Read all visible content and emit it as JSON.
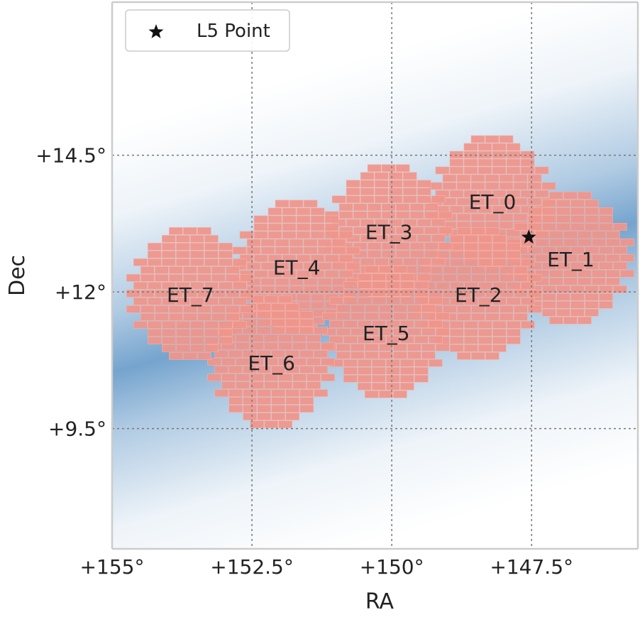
{
  "chart_data": {
    "type": "scatter",
    "title": "",
    "xlabel": "RA",
    "ylabel": "Dec",
    "xlim": [
      155.0,
      145.6
    ],
    "ylim": [
      7.3,
      17.3
    ],
    "x_ticks": [
      155.0,
      152.5,
      150.0,
      147.5
    ],
    "x_tick_labels": [
      "+155°",
      "+152.5°",
      "+150°",
      "+147.5°"
    ],
    "y_ticks": [
      14.5,
      12.0,
      9.5
    ],
    "y_tick_labels": [
      "+14.5°",
      "+12°",
      "+9.5°"
    ],
    "grid": true,
    "grid_style": "dotted",
    "legend": {
      "placement": "top-left",
      "entries": [
        {
          "marker": "star",
          "label": "L5 Point"
        }
      ]
    },
    "background_density_band": {
      "color": "#6e9fcb",
      "description_free": true
    },
    "l5_point": {
      "ra": 147.55,
      "dec": 13.0
    },
    "fields": [
      {
        "label": "ET_0",
        "ra": 148.2,
        "dec": 13.65,
        "radius": 1.18
      },
      {
        "label": "ET_1",
        "ra": 146.8,
        "dec": 12.6,
        "radius": 1.2
      },
      {
        "label": "ET_2",
        "ra": 148.45,
        "dec": 11.95,
        "radius": 1.2
      },
      {
        "label": "ET_3",
        "ra": 150.05,
        "dec": 13.1,
        "radius": 1.2
      },
      {
        "label": "ET_4",
        "ra": 151.7,
        "dec": 12.45,
        "radius": 1.2
      },
      {
        "label": "ET_5",
        "ra": 150.1,
        "dec": 11.25,
        "radius": 1.2
      },
      {
        "label": "ET_6",
        "ra": 152.15,
        "dec": 10.7,
        "radius": 1.2
      },
      {
        "label": "ET_7",
        "ra": 153.6,
        "dec": 11.95,
        "radius": 1.2
      }
    ],
    "colors": {
      "tile_fill": "#ee968c",
      "tile_stroke": "#f2b3ab",
      "tile_overlap": "#ef7c6d",
      "density": "#6e9fcb",
      "axis": "#cccccc",
      "grid": "#777777",
      "text": "#222222"
    }
  }
}
